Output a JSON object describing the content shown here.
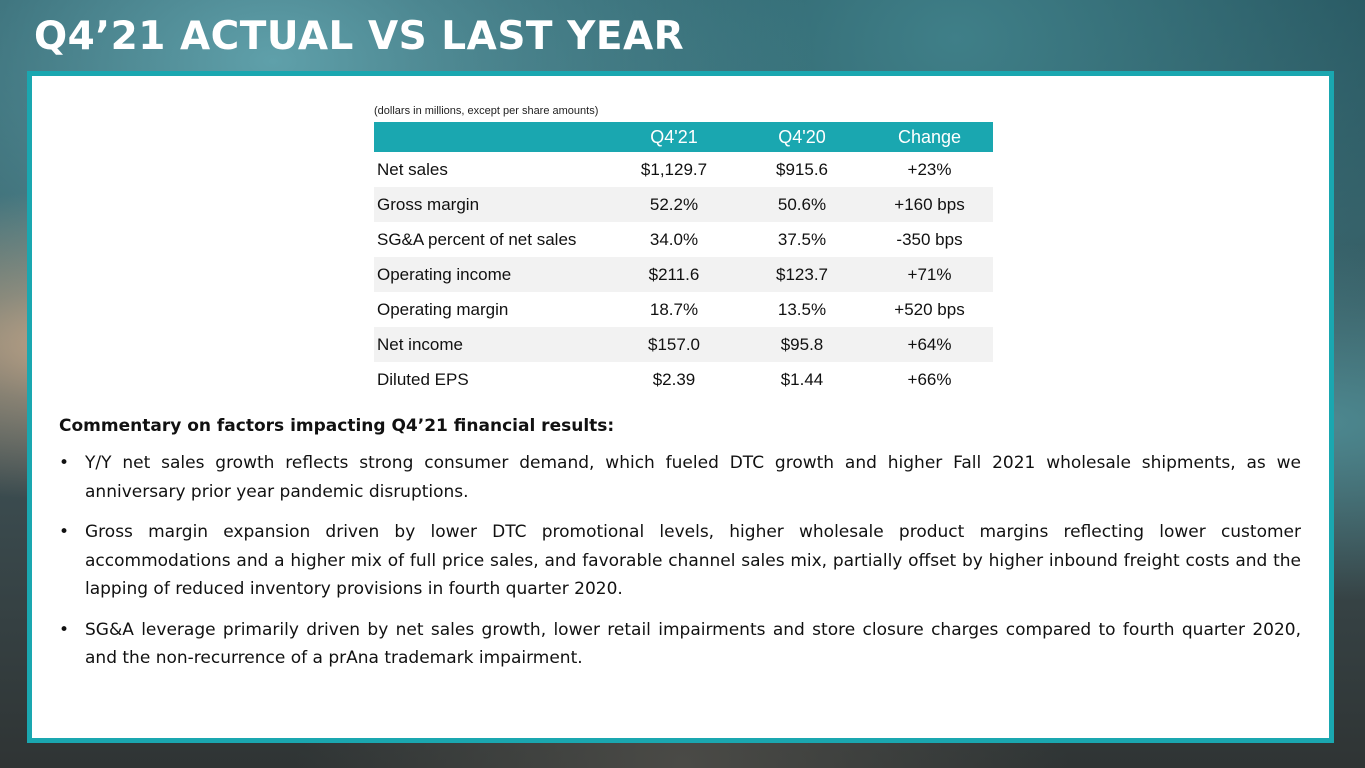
{
  "page": {
    "title": "Q4’21 ACTUAL VS LAST YEAR"
  },
  "table": {
    "units_note": "(dollars in millions, except per share amounts)",
    "headers": [
      "",
      "Q4'21",
      "Q4'20",
      "Change"
    ],
    "rows": [
      {
        "label": "Net sales",
        "q4_21": "$1,129.7",
        "q4_20": "$915.6",
        "change": "+23%"
      },
      {
        "label": "Gross margin",
        "q4_21": "52.2%",
        "q4_20": "50.6%",
        "change": "+160 bps"
      },
      {
        "label": "SG&A percent of net sales",
        "q4_21": "34.0%",
        "q4_20": "37.5%",
        "change": "-350 bps"
      },
      {
        "label": "Operating income",
        "q4_21": "$211.6",
        "q4_20": "$123.7",
        "change": "+71%"
      },
      {
        "label": "Operating margin",
        "q4_21": "18.7%",
        "q4_20": "13.5%",
        "change": "+520 bps"
      },
      {
        "label": "Net income",
        "q4_21": "$157.0",
        "q4_20": "$95.8",
        "change": "+64%"
      },
      {
        "label": "Diluted EPS",
        "q4_21": "$2.39",
        "q4_20": "$1.44",
        "change": "+66%"
      }
    ]
  },
  "commentary": {
    "heading": "Commentary on factors impacting Q4’21 financial results:",
    "bullet_symbol": "•",
    "bullets": [
      " Y/Y net sales growth reflects strong consumer demand, which fueled DTC growth and higher Fall 2021 wholesale shipments, as we anniversary prior year pandemic disruptions.",
      "Gross margin expansion driven by lower DTC promotional levels, higher wholesale product margins reflecting lower customer accommodations and a higher mix of full price sales, and favorable channel sales mix, partially offset by higher inbound freight costs  and the lapping of reduced inventory provisions in fourth quarter 2020.",
      "SG&A leverage primarily driven by net sales growth, lower retail impairments and store closure charges compared to fourth quarter 2020, and the non-recurrence of a prAna trademark impairment."
    ]
  },
  "colors": {
    "accent": "#1aa7b0",
    "row_shade": "#f2f2f2"
  }
}
